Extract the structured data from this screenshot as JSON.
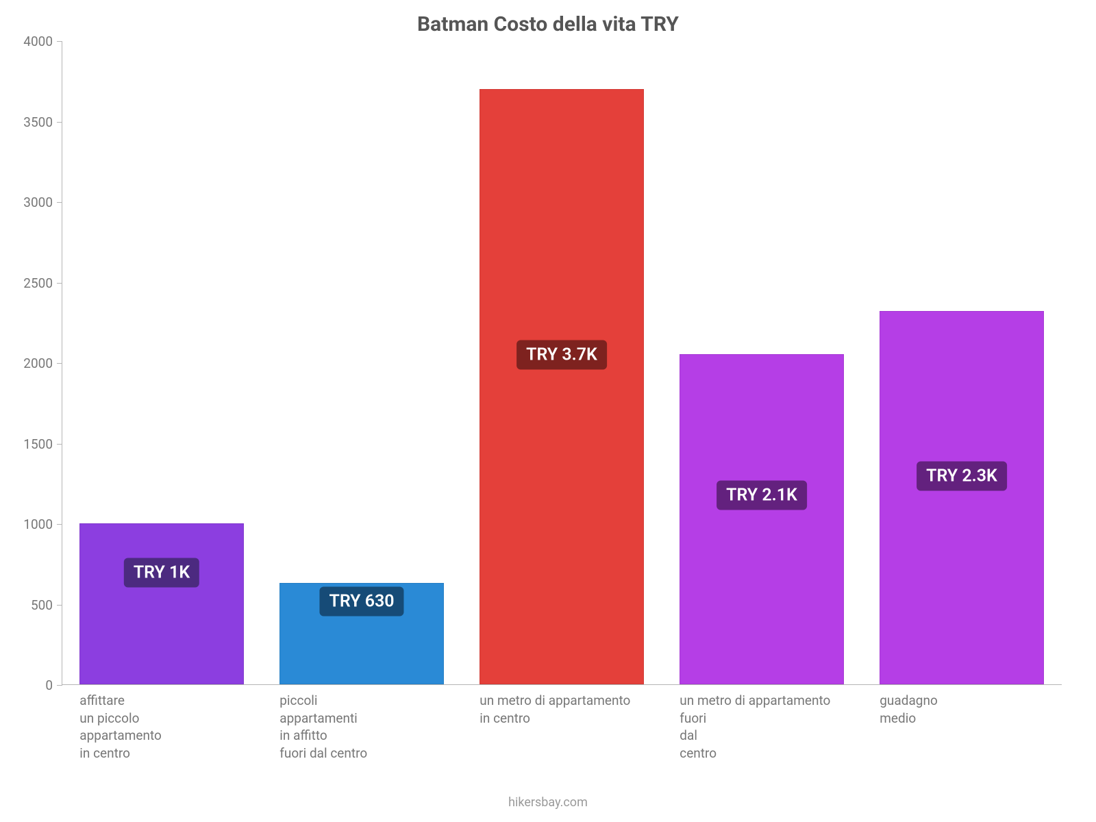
{
  "chart": {
    "type": "bar",
    "title": "Batman Costo della vita TRY",
    "title_fontsize": 30,
    "title_color": "#555555",
    "background_color": "#ffffff",
    "axis_color": "#b5b5b5",
    "tick_label_color": "#777777",
    "tick_label_fontsize": 19,
    "ylim": [
      0,
      4000
    ],
    "ytick_step": 500,
    "yticks": [
      0,
      500,
      1000,
      1500,
      2000,
      2500,
      3000,
      3500,
      4000
    ],
    "bar_width_ratio": 0.82,
    "categories": [
      "affittare\nun piccolo\nappartamento\nin centro",
      "piccoli\nappartamenti\nin affitto\nfuori dal centro",
      "un metro di appartamento\nin centro",
      "un metro di appartamento\nfuori\ndal\ncentro",
      "guadagno\nmedio"
    ],
    "values": [
      1000,
      630,
      3700,
      2050,
      2320
    ],
    "bar_colors": [
      "#8c3ee0",
      "#2a8ad6",
      "#e4403a",
      "#b53ee6",
      "#b53ee6"
    ],
    "value_labels": [
      "TRY 1K",
      "TRY 630",
      "TRY 3.7K",
      "TRY 2.1K",
      "TRY 2.3K"
    ],
    "value_label_bg": [
      "#4c2a80",
      "#164b77",
      "#7e221f",
      "#63217e",
      "#63217e"
    ],
    "value_label_fontsize": 25,
    "value_label_color": "#ffffff",
    "attribution": "hikersbay.com",
    "attribution_color": "#9a9a9a",
    "attribution_fontsize": 18
  }
}
